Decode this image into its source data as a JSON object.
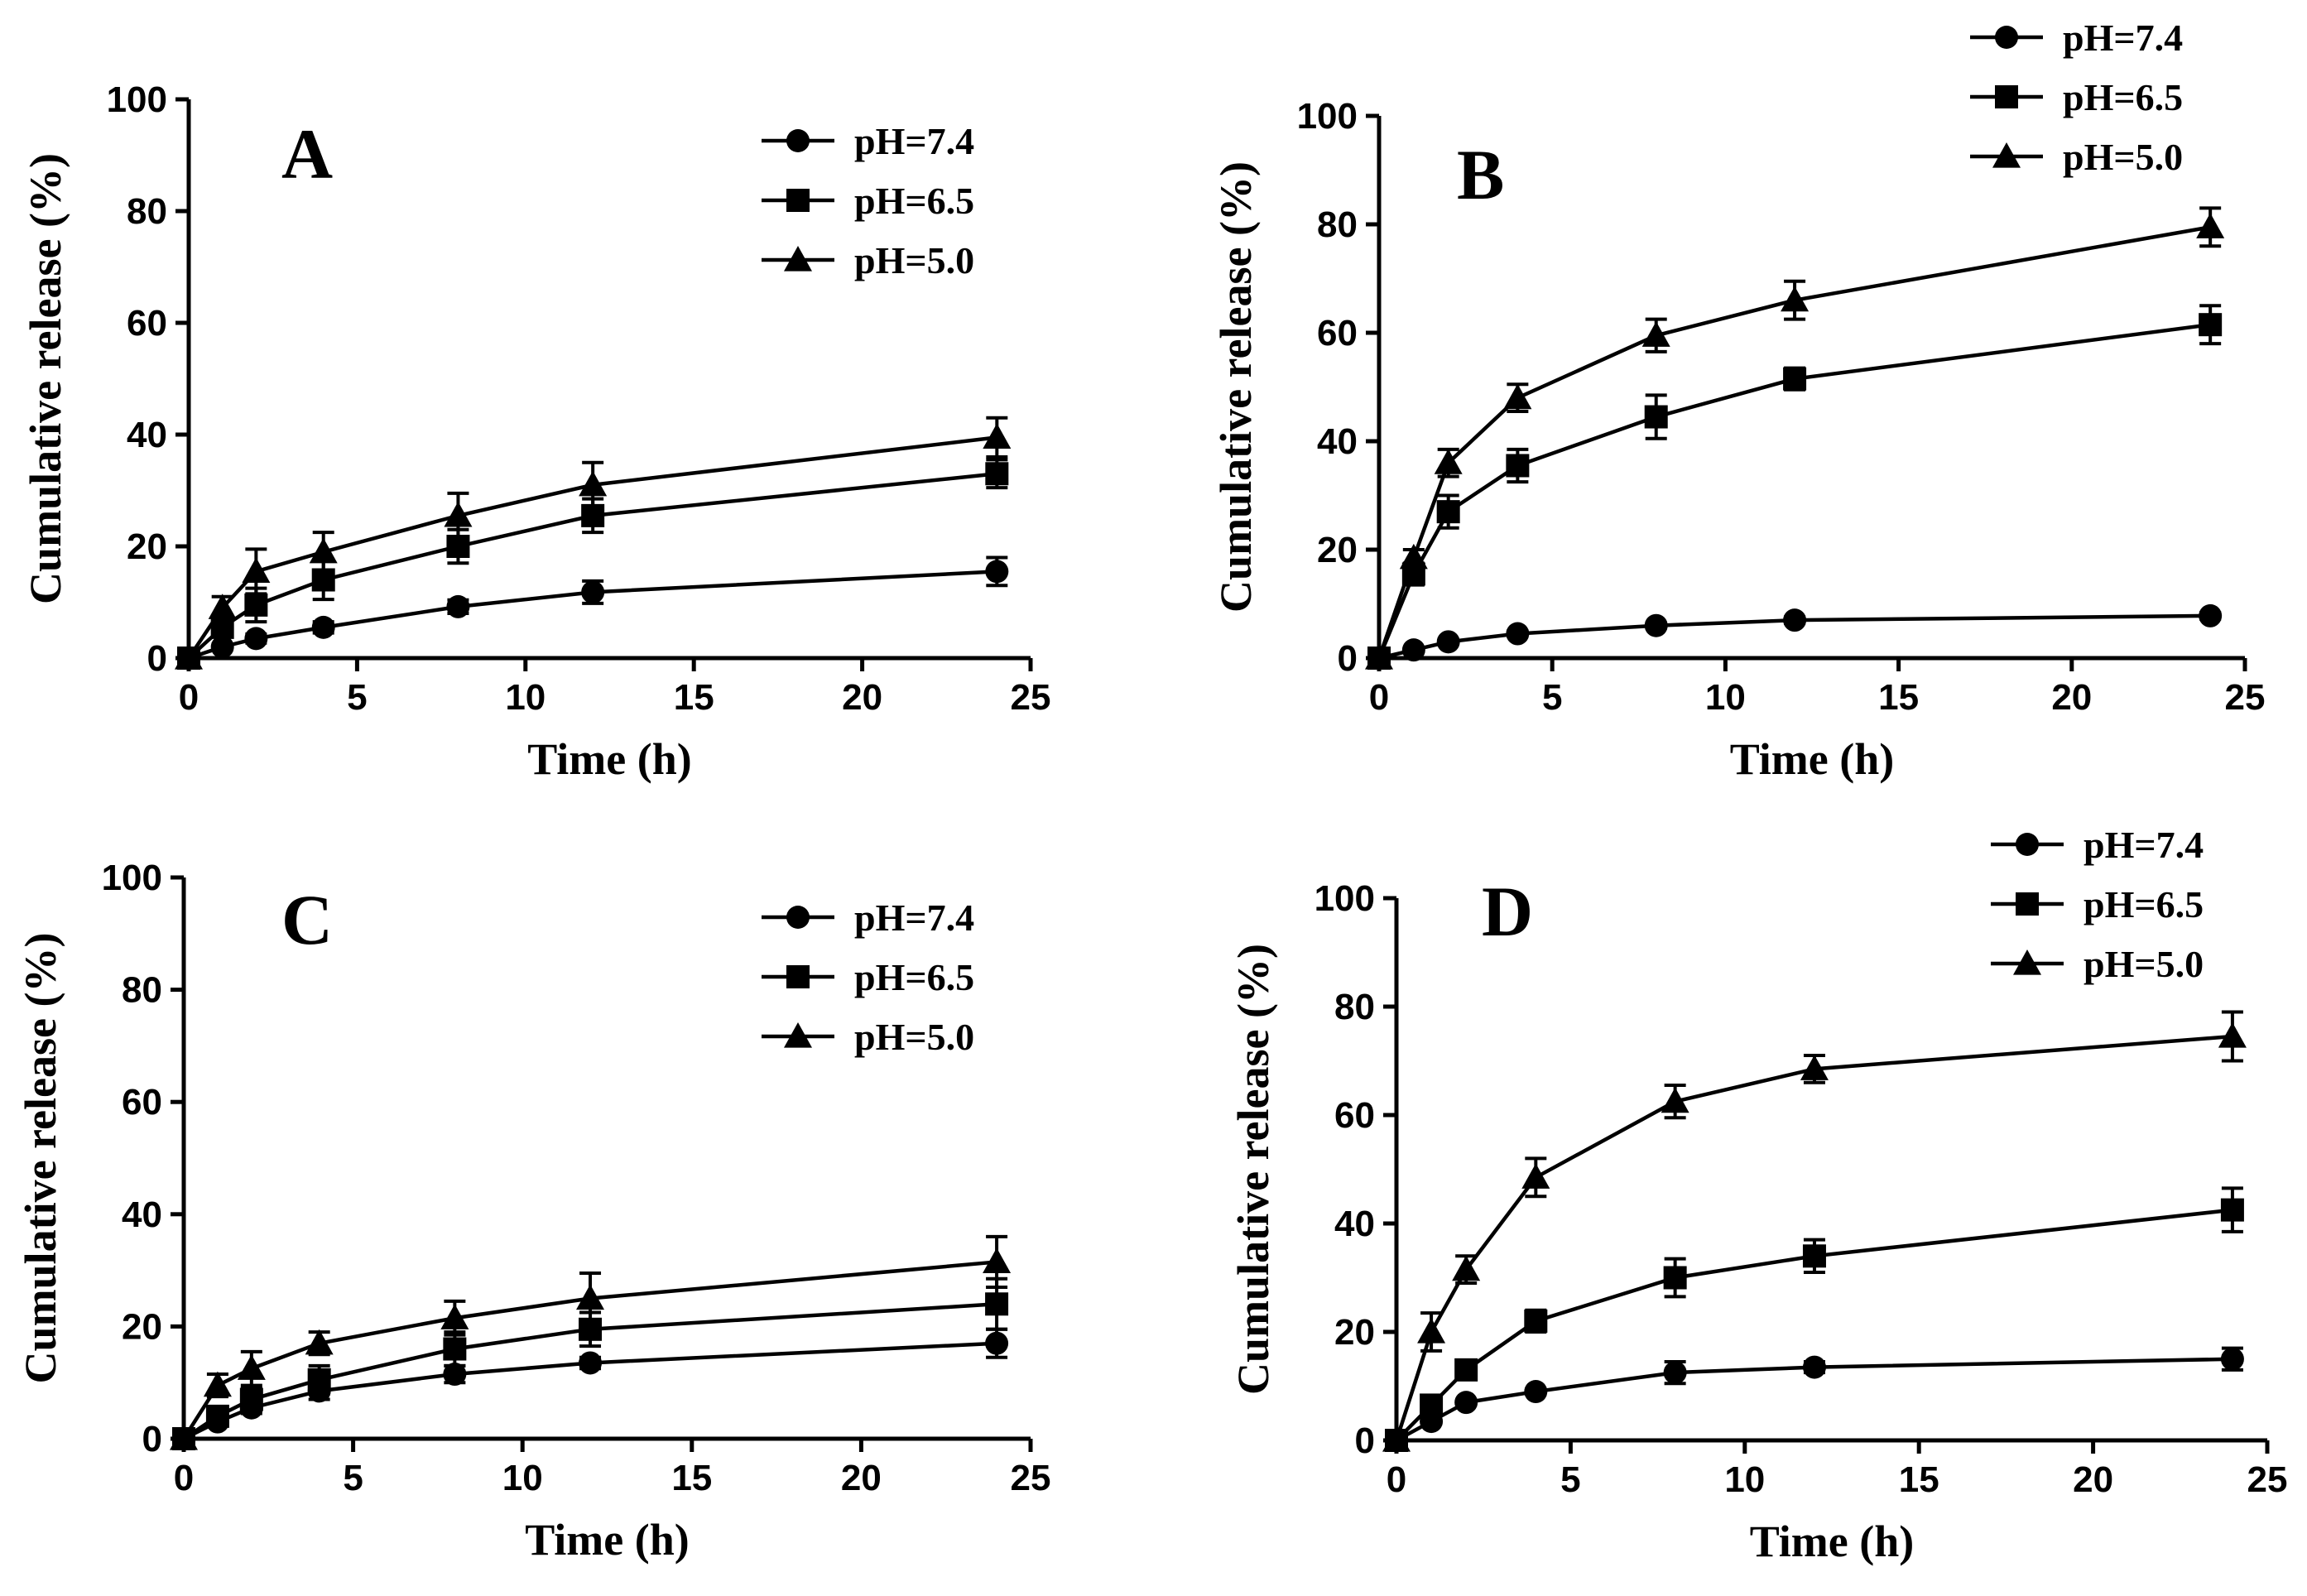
{
  "chart_data": [
    {
      "type": "line",
      "panel": "A",
      "xlabel": "Time (h)",
      "ylabel": "Cumulative release (%)",
      "xlim": [
        0,
        25
      ],
      "ylim": [
        0,
        100
      ],
      "xticks": [
        "0",
        "5",
        "10",
        "15",
        "20",
        "25"
      ],
      "yticks": [
        "0",
        "20",
        "40",
        "60",
        "80",
        "100"
      ],
      "legend_position": "top-right",
      "x": [
        0,
        1,
        2,
        4,
        8,
        12,
        24
      ],
      "series": [
        {
          "name": "pH=7.4",
          "marker": "circle",
          "values": [
            0,
            2,
            3.5,
            5.5,
            9.2,
            11.8,
            15.5
          ],
          "errors": [
            0,
            0.5,
            0.8,
            1,
            1.2,
            2,
            2.5
          ]
        },
        {
          "name": "pH=6.5",
          "marker": "square",
          "values": [
            0,
            5.5,
            9.5,
            14,
            20,
            25.5,
            33
          ],
          "errors": [
            0,
            1.5,
            3,
            3.5,
            3,
            3,
            2.5
          ]
        },
        {
          "name": "pH=5.0",
          "marker": "triangle",
          "values": [
            0,
            9,
            15.5,
            19,
            25.5,
            31,
            39.5
          ],
          "errors": [
            0,
            2,
            4,
            3.5,
            4,
            4,
            3.5
          ]
        }
      ]
    },
    {
      "type": "line",
      "panel": "B",
      "xlabel": "Time (h)",
      "ylabel": "Cumulative release (%)",
      "xlim": [
        0,
        25
      ],
      "ylim": [
        0,
        100
      ],
      "xticks": [
        "0",
        "5",
        "10",
        "15",
        "20",
        "25"
      ],
      "yticks": [
        "0",
        "20",
        "40",
        "60",
        "80",
        "100"
      ],
      "legend_position": "top-right",
      "x": [
        0,
        1,
        2,
        4,
        8,
        12,
        24
      ],
      "series": [
        {
          "name": "pH=7.4",
          "marker": "circle",
          "values": [
            0,
            1.5,
            3,
            4.5,
            6,
            7,
            7.8
          ],
          "errors": [
            0,
            0.3,
            0.4,
            0.5,
            0.5,
            0.6,
            0.6
          ]
        },
        {
          "name": "pH=6.5",
          "marker": "square",
          "values": [
            0,
            15.5,
            27,
            35.5,
            44.5,
            51.5,
            61.5
          ],
          "errors": [
            0,
            2,
            3,
            3,
            4,
            2,
            3.5
          ]
        },
        {
          "name": "pH=5.0",
          "marker": "triangle",
          "values": [
            0,
            18.5,
            36,
            48,
            59.5,
            66,
            79.5
          ],
          "errors": [
            0,
            1.5,
            2.5,
            2.5,
            3,
            3.5,
            3.5
          ]
        }
      ]
    },
    {
      "type": "line",
      "panel": "C",
      "xlabel": "Time (h)",
      "ylabel": "Cumulative release (%)",
      "xlim": [
        0,
        25
      ],
      "ylim": [
        0,
        100
      ],
      "xticks": [
        "0",
        "5",
        "10",
        "15",
        "20",
        "25"
      ],
      "yticks": [
        "0",
        "20",
        "40",
        "60",
        "80",
        "100"
      ],
      "legend_position": "top-right",
      "x": [
        0,
        1,
        2,
        4,
        8,
        12,
        24
      ],
      "series": [
        {
          "name": "pH=7.4",
          "marker": "circle",
          "values": [
            0,
            3,
            5.5,
            8.5,
            11.5,
            13.5,
            17
          ],
          "errors": [
            0,
            0.5,
            1,
            1.5,
            1.5,
            1,
            2.5
          ]
        },
        {
          "name": "pH=6.5",
          "marker": "square",
          "values": [
            0,
            4,
            7,
            10.5,
            16,
            19.5,
            24
          ],
          "errors": [
            0,
            1,
            2,
            2.5,
            3,
            3,
            4.5
          ]
        },
        {
          "name": "pH=5.0",
          "marker": "triangle",
          "values": [
            0,
            9.5,
            12.5,
            17,
            21.5,
            25,
            31.5
          ],
          "errors": [
            0,
            2,
            3,
            2,
            3,
            4.5,
            4.5
          ]
        }
      ]
    },
    {
      "type": "line",
      "panel": "D",
      "xlabel": "Time (h)",
      "ylabel": "Cumulative release (%)",
      "xlim": [
        0,
        25
      ],
      "ylim": [
        0,
        100
      ],
      "xticks": [
        "0",
        "5",
        "10",
        "15",
        "20",
        "25"
      ],
      "yticks": [
        "0",
        "20",
        "40",
        "60",
        "80",
        "100"
      ],
      "legend_position": "top-right",
      "x": [
        0,
        1,
        2,
        4,
        8,
        12,
        24
      ],
      "series": [
        {
          "name": "pH=7.4",
          "marker": "circle",
          "values": [
            0,
            3.5,
            7,
            9,
            12.5,
            13.5,
            15
          ],
          "errors": [
            0,
            0.5,
            0.5,
            0.5,
            2,
            1,
            2
          ]
        },
        {
          "name": "pH=6.5",
          "marker": "square",
          "values": [
            0,
            6.5,
            13,
            22,
            30,
            34,
            42.5
          ],
          "errors": [
            0,
            1.5,
            1.5,
            2,
            3.5,
            3,
            4
          ]
        },
        {
          "name": "pH=5.0",
          "marker": "triangle",
          "values": [
            0,
            20,
            31.5,
            48.5,
            62.5,
            68.5,
            74.5
          ],
          "errors": [
            0,
            3.5,
            2.5,
            3.5,
            3,
            2.5,
            4.5
          ]
        }
      ]
    }
  ]
}
